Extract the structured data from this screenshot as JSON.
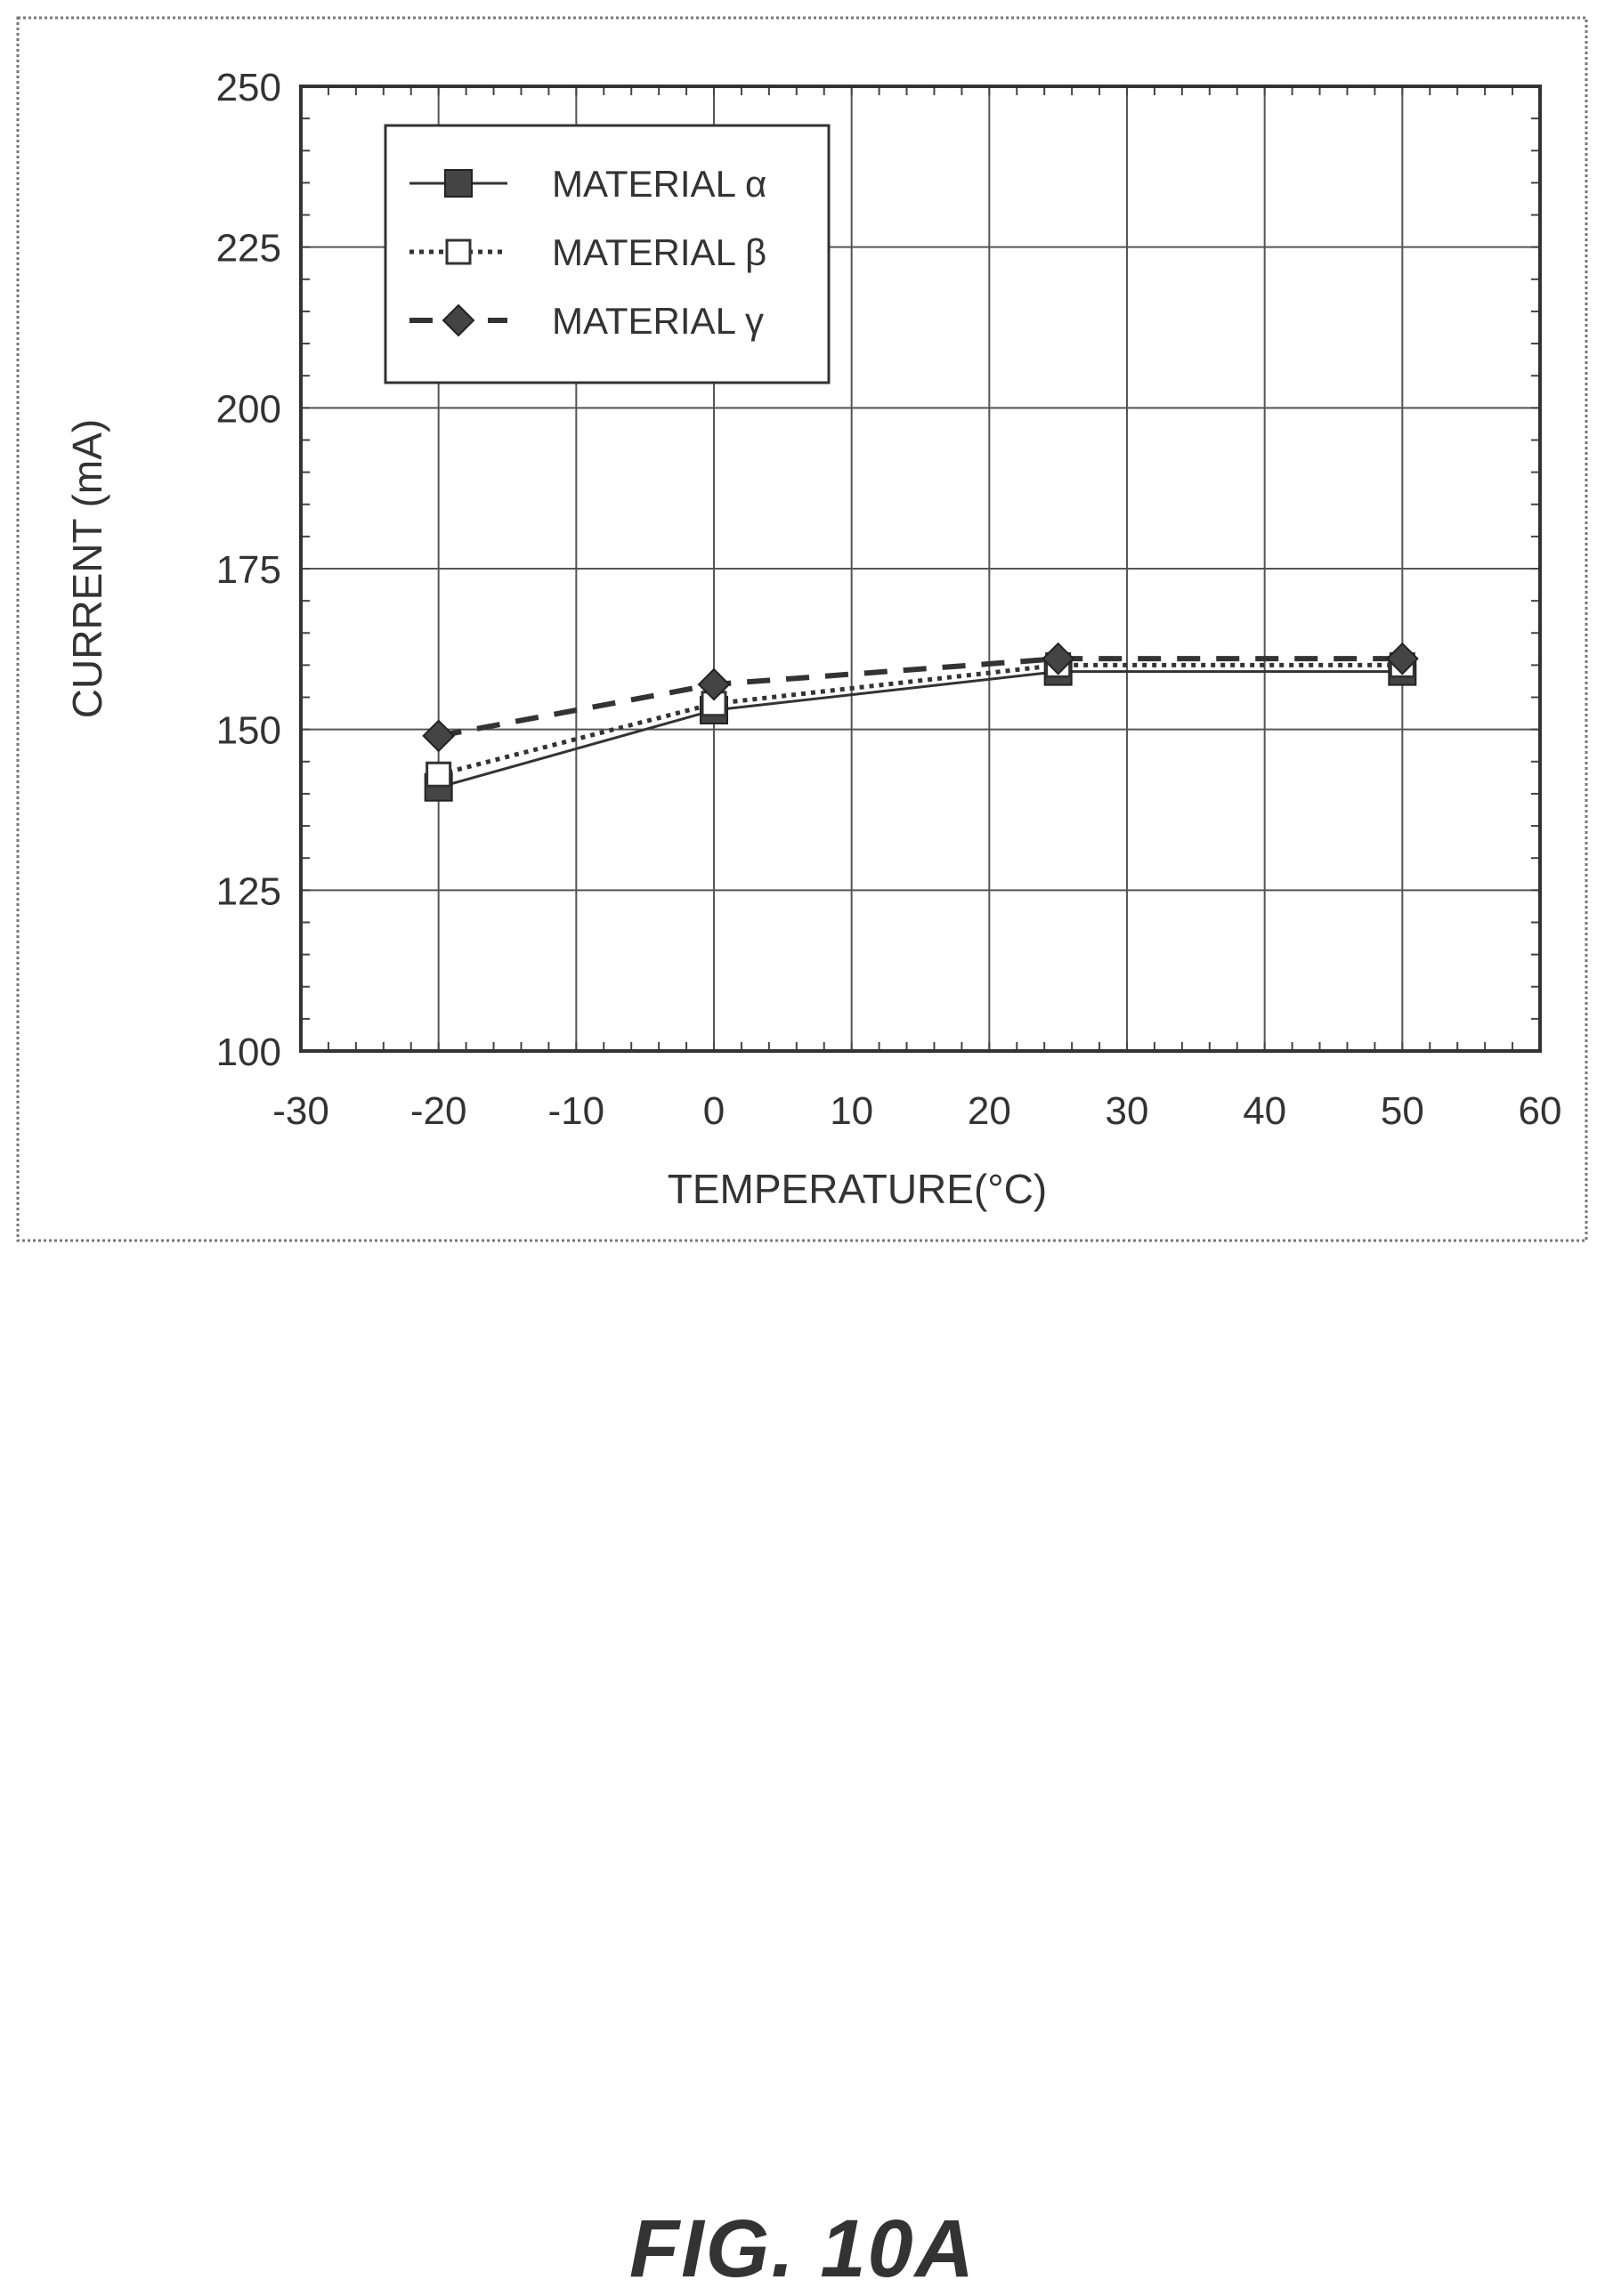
{
  "figure_label": "FIG. 10A",
  "chart_data": {
    "type": "line",
    "xlabel": "TEMPERATURE(°C)",
    "ylabel": "CURRENT (mA)",
    "xlim": [
      -30,
      60
    ],
    "ylim": [
      100,
      250
    ],
    "xticks": [
      -30,
      -20,
      -10,
      0,
      10,
      20,
      30,
      40,
      50,
      60
    ],
    "yticks": [
      100,
      125,
      150,
      175,
      200,
      225,
      250
    ],
    "grid": true,
    "legend_position": "top-left",
    "series": [
      {
        "name": "MATERIAL α",
        "marker": "filled-square",
        "line": "solid",
        "x": [
          -20,
          0,
          25,
          50
        ],
        "y": [
          141,
          153,
          159,
          159
        ]
      },
      {
        "name": "MATERIAL β",
        "marker": "open-square",
        "line": "dotted",
        "x": [
          -20,
          0,
          25,
          50
        ],
        "y": [
          143,
          154,
          160,
          160
        ]
      },
      {
        "name": "MATERIAL γ",
        "marker": "filled-diamond",
        "line": "dashed",
        "x": [
          -20,
          0,
          25,
          50
        ],
        "y": [
          149,
          157,
          161,
          161
        ]
      }
    ]
  }
}
